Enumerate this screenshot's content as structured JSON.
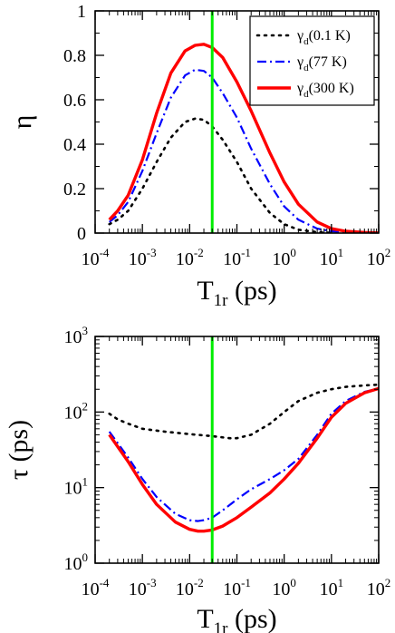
{
  "colors": {
    "marker_line": "#00ee00",
    "series": [
      "#000000",
      "#0000ff",
      "#ff0000"
    ]
  },
  "chart_data": [
    {
      "type": "line",
      "xlabel": "T1r (ps)",
      "xlabel_parts": {
        "main": "T",
        "sub": "1r",
        "rest": " (ps)"
      },
      "ylabel": "η",
      "xscale": "log",
      "xlim": [
        0.0001,
        100
      ],
      "ylim": [
        0,
        1
      ],
      "xticks": [
        {
          "base": "10",
          "exp": "-4",
          "v": 0.0001
        },
        {
          "base": "10",
          "exp": "-3",
          "v": 0.001
        },
        {
          "base": "10",
          "exp": "-2",
          "v": 0.01
        },
        {
          "base": "10",
          "exp": "-1",
          "v": 0.1
        },
        {
          "base": "10",
          "exp": "0",
          "v": 1
        },
        {
          "base": "10",
          "exp": "1",
          "v": 10
        },
        {
          "base": "10",
          "exp": "2",
          "v": 100
        }
      ],
      "yticks": [
        {
          "label": "0",
          "v": 0
        },
        {
          "label": "0.2",
          "v": 0.2
        },
        {
          "label": "0.4",
          "v": 0.4
        },
        {
          "label": "0.6",
          "v": 0.6
        },
        {
          "label": "0.8",
          "v": 0.8
        },
        {
          "label": "1",
          "v": 1
        }
      ],
      "vline_x": 0.03,
      "legend_placement": "top-right",
      "series": [
        {
          "name": "γd(0.1 K)",
          "name_parts": {
            "main": "γ",
            "sub": "d",
            "rest": "(0.1 K)"
          },
          "style": "dotted",
          "x": [
            0.0002,
            0.0003,
            0.0005,
            0.001,
            0.002,
            0.004,
            0.008,
            0.013,
            0.02,
            0.03,
            0.05,
            0.1,
            0.2,
            0.5,
            1,
            2,
            5,
            10
          ],
          "y": [
            0.04,
            0.06,
            0.1,
            0.2,
            0.32,
            0.43,
            0.5,
            0.515,
            0.51,
            0.48,
            0.42,
            0.32,
            0.2,
            0.09,
            0.04,
            0.015,
            0.004,
            0.001
          ]
        },
        {
          "name": "γd(77 K)",
          "name_parts": {
            "main": "γ",
            "sub": "d",
            "rest": "(77 K)"
          },
          "style": "dash-dot",
          "x": [
            0.0002,
            0.0003,
            0.0005,
            0.001,
            0.002,
            0.004,
            0.008,
            0.013,
            0.02,
            0.03,
            0.05,
            0.1,
            0.2,
            0.5,
            1,
            2,
            5,
            10,
            20,
            50
          ],
          "y": [
            0.05,
            0.08,
            0.14,
            0.28,
            0.45,
            0.61,
            0.71,
            0.735,
            0.73,
            0.7,
            0.63,
            0.52,
            0.38,
            0.22,
            0.12,
            0.06,
            0.02,
            0.008,
            0.004,
            0.001
          ]
        },
        {
          "name": "γd(300 K)",
          "name_parts": {
            "main": "γ",
            "sub": "d",
            "rest": "(300 K)"
          },
          "style": "solid",
          "x": [
            0.0002,
            0.0003,
            0.0005,
            0.001,
            0.002,
            0.004,
            0.008,
            0.013,
            0.02,
            0.03,
            0.05,
            0.1,
            0.2,
            0.5,
            1,
            2,
            5,
            10,
            20,
            50,
            100
          ],
          "y": [
            0.06,
            0.1,
            0.17,
            0.33,
            0.54,
            0.72,
            0.82,
            0.845,
            0.85,
            0.835,
            0.79,
            0.68,
            0.55,
            0.36,
            0.23,
            0.13,
            0.05,
            0.02,
            0.008,
            0.003,
            0.001
          ]
        }
      ]
    },
    {
      "type": "line",
      "xlabel": "T1r (ps)",
      "xlabel_parts": {
        "main": "T",
        "sub": "1r",
        "rest": " (ps)"
      },
      "ylabel": "τ (ps)",
      "xscale": "log",
      "yscale": "log",
      "xlim": [
        0.0001,
        100
      ],
      "ylim": [
        1,
        1000
      ],
      "xticks": [
        {
          "base": "10",
          "exp": "-4",
          "v": 0.0001
        },
        {
          "base": "10",
          "exp": "-3",
          "v": 0.001
        },
        {
          "base": "10",
          "exp": "-2",
          "v": 0.01
        },
        {
          "base": "10",
          "exp": "-1",
          "v": 0.1
        },
        {
          "base": "10",
          "exp": "0",
          "v": 1
        },
        {
          "base": "10",
          "exp": "1",
          "v": 10
        },
        {
          "base": "10",
          "exp": "2",
          "v": 100
        }
      ],
      "yticks": [
        {
          "base": "10",
          "exp": "0",
          "v": 1
        },
        {
          "base": "10",
          "exp": "1",
          "v": 10
        },
        {
          "base": "10",
          "exp": "2",
          "v": 100
        },
        {
          "base": "10",
          "exp": "3",
          "v": 1000
        }
      ],
      "vline_x": 0.03,
      "series": [
        {
          "style": "dotted",
          "x": [
            0.0002,
            0.0003,
            0.0005,
            0.001,
            0.003,
            0.01,
            0.03,
            0.07,
            0.1,
            0.2,
            0.5,
            1,
            2,
            5,
            10,
            20,
            50,
            100
          ],
          "y": [
            95,
            80,
            70,
            60,
            55,
            51,
            48,
            45,
            45,
            50,
            70,
            100,
            140,
            180,
            200,
            215,
            225,
            230
          ]
        },
        {
          "style": "dash-dot",
          "x": [
            0.0002,
            0.0005,
            0.001,
            0.002,
            0.005,
            0.01,
            0.015,
            0.02,
            0.03,
            0.05,
            0.1,
            0.2,
            0.5,
            1,
            2,
            5,
            10,
            20,
            50,
            100
          ],
          "y": [
            55,
            25,
            13,
            7.5,
            4.5,
            3.7,
            3.6,
            3.7,
            4.0,
            5.0,
            7.0,
            9.5,
            13,
            17,
            24,
            50,
            95,
            140,
            185,
            205
          ]
        },
        {
          "style": "solid",
          "x": [
            0.0002,
            0.0005,
            0.001,
            0.002,
            0.005,
            0.01,
            0.015,
            0.02,
            0.03,
            0.05,
            0.1,
            0.2,
            0.5,
            1,
            2,
            5,
            10,
            20,
            50,
            100
          ],
          "y": [
            50,
            22,
            11,
            6.0,
            3.5,
            2.8,
            2.65,
            2.65,
            2.75,
            3.1,
            4.0,
            5.5,
            8.5,
            13,
            21,
            45,
            85,
            130,
            180,
            205
          ]
        }
      ]
    }
  ]
}
